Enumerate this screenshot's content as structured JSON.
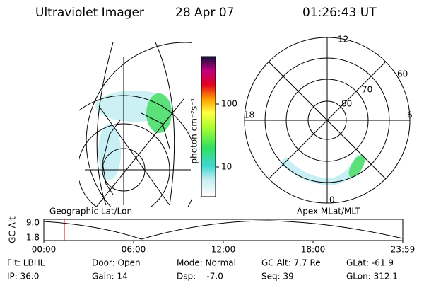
{
  "header": {
    "instrument": "Ultraviolet Imager",
    "date": "28 Apr 07",
    "time": "01:26:43 UT"
  },
  "colorbar": {
    "label": "photon cm⁻²s⁻¹",
    "ticks": [
      "100",
      "10"
    ]
  },
  "polar": {
    "mlt_labels": [
      "12",
      "18",
      "6",
      "0"
    ],
    "lat_labels": [
      "80",
      "70",
      "60"
    ]
  },
  "timeline": {
    "left_title": "Geographic Lat/Lon",
    "right_title": "Apex MLat/MLT",
    "y_label": "GC Alt",
    "y_ticks": [
      "9.0",
      "1.8"
    ],
    "x_ticks": [
      "00:00",
      "06:00",
      "12:00",
      "18:00",
      "23:59"
    ]
  },
  "footer": {
    "fields": [
      "Flt: LBHL",
      "IP: 36.0",
      "Door: Open",
      "Gain: 14",
      "Mode: Normal",
      "Dsp:    -7.0",
      "GC Alt: 7.7 Re",
      "Seq: 39",
      "GLat: -61.9",
      "GLon: 312.1"
    ]
  }
}
